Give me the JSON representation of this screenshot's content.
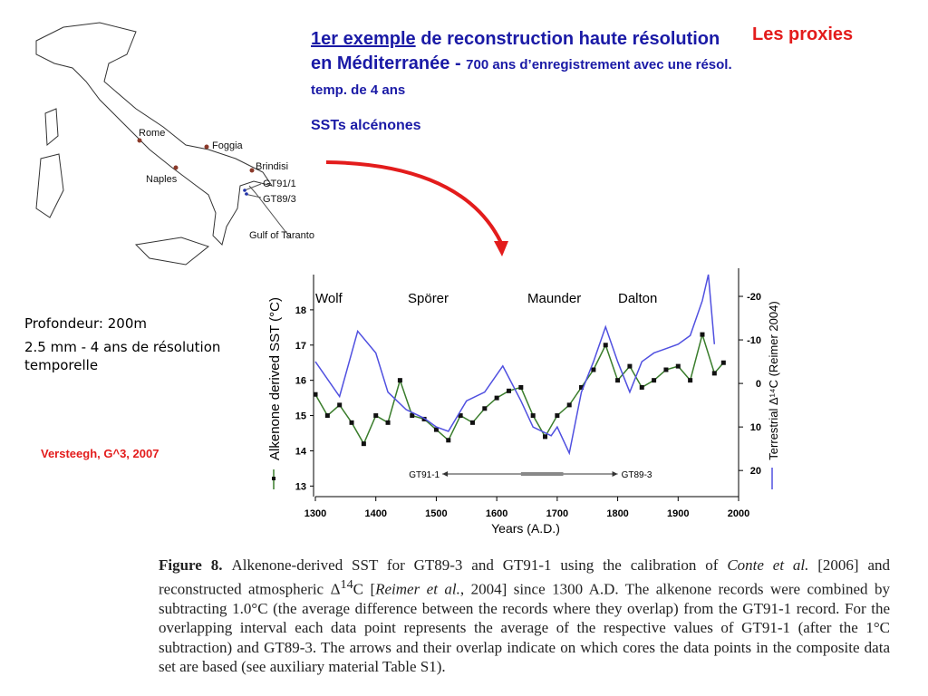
{
  "title": "Les proxies",
  "heading": {
    "link": "1er exemple",
    "rest": " de reconstruction haute résolution en Méditerranée - ",
    "small": "700 ans d’enregistrement avec une résol. temp. de 4 ans"
  },
  "subheading": "SSTs alcénones",
  "map": {
    "labels": [
      "Rome",
      "Foggia",
      "Brindisi",
      "Naples",
      "GT91/1",
      "GT89/3",
      "Gulf of Taranto"
    ]
  },
  "notes": [
    "Profondeur: 200m",
    "2.5 mm - 4 ans de résolution temporelle"
  ],
  "citation": "Versteegh, G^3, 2007",
  "chart_data": {
    "type": "line",
    "xlabel": "Years (A.D.)",
    "ylabel": "Alkenone derived SST (°C)",
    "y2label": "Terrestrial  Δ¹⁴C (Reimer 2004)",
    "annotations": [
      "Wolf",
      "Spörer",
      "Maunder",
      "Dalton"
    ],
    "periods": [
      {
        "name": "GT91-1",
        "range": [
          1510,
          1710
        ]
      },
      {
        "name": "GT89-3",
        "range": [
          1640,
          1800
        ]
      }
    ],
    "xlim": [
      1300,
      2000
    ],
    "xticks": [
      1300,
      1400,
      1500,
      1600,
      1700,
      1800,
      1900,
      2000
    ],
    "ylim": [
      12.7,
      19
    ],
    "yticks": [
      13,
      14,
      15,
      16,
      17,
      18
    ],
    "y2lim": [
      26,
      -25
    ],
    "y2ticks": [
      -20,
      -10,
      0,
      10,
      20
    ],
    "series": [
      {
        "name": "SST",
        "color": "#3a7d2c",
        "x": [
          1300,
          1320,
          1340,
          1360,
          1380,
          1400,
          1420,
          1440,
          1460,
          1480,
          1500,
          1520,
          1540,
          1560,
          1580,
          1600,
          1620,
          1640,
          1660,
          1680,
          1700,
          1720,
          1740,
          1760,
          1780,
          1800,
          1820,
          1840,
          1860,
          1880,
          1900,
          1920,
          1940,
          1960,
          1975
        ],
        "values": [
          15.6,
          15.0,
          15.3,
          14.8,
          14.2,
          15.0,
          14.8,
          16.0,
          15.0,
          14.9,
          14.6,
          14.3,
          15.0,
          14.8,
          15.2,
          15.5,
          15.7,
          15.8,
          15.0,
          14.4,
          15.0,
          15.3,
          15.8,
          16.3,
          17.0,
          16.0,
          16.4,
          15.8,
          16.0,
          16.3,
          16.4,
          16.0,
          17.3,
          16.2,
          16.5
        ]
      },
      {
        "name": "Δ¹⁴C",
        "color": "#5050e0",
        "axis": "y2",
        "x": [
          1300,
          1340,
          1370,
          1400,
          1420,
          1450,
          1480,
          1500,
          1520,
          1550,
          1580,
          1610,
          1640,
          1660,
          1690,
          1700,
          1720,
          1740,
          1760,
          1780,
          1800,
          1820,
          1840,
          1860,
          1880,
          1900,
          1920,
          1940,
          1950,
          1960
        ],
        "values": [
          -5,
          3,
          -12,
          -7,
          2,
          6,
          8,
          10,
          11,
          4,
          2,
          -4,
          4,
          10,
          12,
          10,
          16,
          2,
          -5,
          -13,
          -5,
          2,
          -5,
          -7,
          -8,
          -9,
          -11,
          -19,
          -25,
          -9
        ]
      }
    ]
  },
  "caption": [
    "Figure 8.",
    "Alkenone-derived SST for GT89-3 and GT91-1 using the calibration of ",
    "Conte et al.",
    " [2006] and reconstructed atmospheric Δ",
    "14",
    "C [",
    "Reimer et al.",
    ", 2004] since 1300 A.D. The alkenone records were combined by subtracting 1.0°C (the average difference between the records where they overlap) from the GT91-1 record. For the overlapping interval each data point represents the average of the respective values of GT91-1 (after the 1°C subtraction) and GT89-3. The arrows and their overlap indicate on which cores the data points in the composite data set are based (see auxiliary material Table S1)."
  ]
}
